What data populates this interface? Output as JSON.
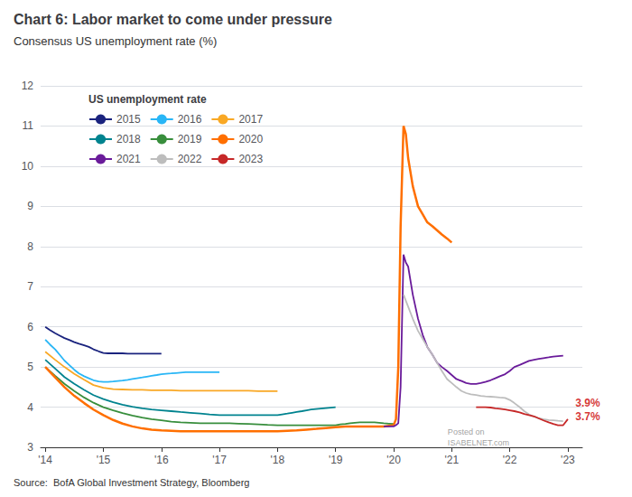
{
  "chart_data": {
    "type": "line",
    "title": "Chart 6: Labor market to come under pressure",
    "subtitle": "Consensus US unemployment rate (%)",
    "source": "Source:  BofA Global Investment Strategy, Bloomberg",
    "legend_title": "US unemployment rate",
    "legend": "upper left",
    "grid": true,
    "xlim": [
      2013.92,
      2023.25
    ],
    "xticks": [
      {
        "value": 2014,
        "label": "'14"
      },
      {
        "value": 2015,
        "label": "'15"
      },
      {
        "value": 2016,
        "label": "'16"
      },
      {
        "value": 2017,
        "label": "'17"
      },
      {
        "value": 2018,
        "label": "'18"
      },
      {
        "value": 2019,
        "label": "'19"
      },
      {
        "value": 2020,
        "label": "'20"
      },
      {
        "value": 2021,
        "label": "'21"
      },
      {
        "value": 2022,
        "label": "'22"
      },
      {
        "value": 2023,
        "label": "'23"
      }
    ],
    "ylim": [
      3,
      12
    ],
    "yticks": [
      3,
      4,
      5,
      6,
      7,
      8,
      9,
      10,
      11,
      12
    ],
    "annotations": [
      {
        "text": "3.9%",
        "x": 2023.1,
        "y": 3.95,
        "color": "#cc0000"
      },
      {
        "text": "3.7%",
        "x": 2023.1,
        "y": 3.62,
        "color": "#cc0000"
      },
      {
        "text": "Posted on",
        "x": 2020.9,
        "y": 3.08
      },
      {
        "text": "ISABELNET.com",
        "x": 2020.9,
        "y": 3.02
      }
    ],
    "series": [
      {
        "name": "2015",
        "color": "#1a237e",
        "x": [
          2014.0,
          2014.08,
          2014.17,
          2014.25,
          2014.33,
          2014.42,
          2014.5,
          2014.58,
          2014.67,
          2014.75,
          2014.83,
          2014.92,
          2015.0,
          2015.08,
          2015.17,
          2015.25,
          2015.33,
          2015.42,
          2015.5,
          2015.58,
          2015.67,
          2015.75,
          2015.83,
          2015.92,
          2016.0
        ],
        "values": [
          6.0,
          5.92,
          5.84,
          5.78,
          5.72,
          5.67,
          5.62,
          5.58,
          5.54,
          5.5,
          5.44,
          5.39,
          5.35,
          5.34,
          5.34,
          5.34,
          5.34,
          5.33,
          5.33,
          5.33,
          5.33,
          5.33,
          5.33,
          5.33,
          5.33
        ]
      },
      {
        "name": "2016",
        "color": "#29b6f6",
        "x": [
          2014.0,
          2014.08,
          2014.17,
          2014.25,
          2014.33,
          2014.42,
          2014.5,
          2014.58,
          2014.67,
          2014.75,
          2014.83,
          2014.92,
          2015.0,
          2015.08,
          2015.17,
          2015.25,
          2015.33,
          2015.42,
          2015.5,
          2015.58,
          2015.67,
          2015.75,
          2015.83,
          2015.92,
          2016.0,
          2016.08,
          2016.17,
          2016.25,
          2016.33,
          2016.42,
          2016.5,
          2016.58,
          2016.67,
          2016.75,
          2016.83,
          2016.92,
          2017.0
        ],
        "values": [
          5.68,
          5.56,
          5.44,
          5.3,
          5.16,
          5.04,
          4.93,
          4.84,
          4.77,
          4.72,
          4.67,
          4.64,
          4.63,
          4.63,
          4.64,
          4.65,
          4.66,
          4.68,
          4.7,
          4.72,
          4.74,
          4.76,
          4.78,
          4.8,
          4.82,
          4.83,
          4.84,
          4.85,
          4.86,
          4.87,
          4.87,
          4.87,
          4.87,
          4.87,
          4.87,
          4.87,
          4.87
        ]
      },
      {
        "name": "2017",
        "color": "#f9a825",
        "x": [
          2014.0,
          2014.17,
          2014.33,
          2014.5,
          2014.67,
          2014.83,
          2015.0,
          2015.17,
          2015.33,
          2015.5,
          2015.67,
          2015.83,
          2016.0,
          2016.17,
          2016.33,
          2016.5,
          2016.67,
          2016.83,
          2017.0,
          2017.17,
          2017.33,
          2017.5,
          2017.67,
          2017.83,
          2018.0
        ],
        "values": [
          5.38,
          5.18,
          5.0,
          4.83,
          4.68,
          4.55,
          4.48,
          4.45,
          4.44,
          4.43,
          4.43,
          4.42,
          4.42,
          4.42,
          4.41,
          4.41,
          4.41,
          4.41,
          4.41,
          4.41,
          4.41,
          4.41,
          4.4,
          4.4,
          4.4
        ]
      },
      {
        "name": "2018",
        "color": "#00838f",
        "x": [
          2014.0,
          2014.17,
          2014.33,
          2014.5,
          2014.67,
          2014.83,
          2015.0,
          2015.17,
          2015.33,
          2015.5,
          2015.67,
          2015.83,
          2016.0,
          2016.17,
          2016.33,
          2016.5,
          2016.67,
          2016.83,
          2017.0,
          2017.17,
          2017.33,
          2017.5,
          2017.67,
          2017.83,
          2018.0,
          2018.08,
          2018.17,
          2018.25,
          2018.33,
          2018.42,
          2018.5,
          2018.58,
          2019.0
        ],
        "values": [
          5.18,
          4.96,
          4.75,
          4.58,
          4.43,
          4.3,
          4.2,
          4.12,
          4.06,
          4.01,
          3.97,
          3.94,
          3.92,
          3.9,
          3.88,
          3.86,
          3.84,
          3.82,
          3.8,
          3.8,
          3.8,
          3.8,
          3.8,
          3.8,
          3.8,
          3.82,
          3.84,
          3.86,
          3.88,
          3.9,
          3.92,
          3.94,
          4.0
        ]
      },
      {
        "name": "2019",
        "color": "#388e3c",
        "x": [
          2014.0,
          2014.17,
          2014.33,
          2014.5,
          2014.67,
          2014.83,
          2015.0,
          2015.17,
          2015.33,
          2015.5,
          2015.67,
          2015.83,
          2016.0,
          2016.17,
          2016.33,
          2016.5,
          2016.67,
          2016.83,
          2017.0,
          2017.17,
          2017.33,
          2017.5,
          2017.67,
          2017.83,
          2018.0,
          2018.17,
          2018.33,
          2018.5,
          2018.67,
          2018.83,
          2019.0,
          2019.08,
          2019.17,
          2019.25,
          2019.33,
          2019.42,
          2019.5,
          2019.58,
          2019.67,
          2019.75,
          2019.83,
          2019.92,
          2020.0
        ],
        "values": [
          5.0,
          4.78,
          4.58,
          4.4,
          4.24,
          4.11,
          4.0,
          3.92,
          3.85,
          3.79,
          3.74,
          3.7,
          3.67,
          3.64,
          3.62,
          3.61,
          3.6,
          3.6,
          3.6,
          3.6,
          3.59,
          3.58,
          3.57,
          3.56,
          3.55,
          3.55,
          3.55,
          3.55,
          3.55,
          3.55,
          3.55,
          3.57,
          3.58,
          3.6,
          3.61,
          3.62,
          3.62,
          3.62,
          3.62,
          3.61,
          3.6,
          3.59,
          3.58
        ]
      },
      {
        "name": "2020",
        "color": "#ff6f00",
        "x": [
          2014.0,
          2014.17,
          2014.33,
          2014.5,
          2014.67,
          2014.83,
          2015.0,
          2015.17,
          2015.33,
          2015.5,
          2015.67,
          2015.83,
          2016.0,
          2016.17,
          2016.33,
          2016.5,
          2016.67,
          2016.83,
          2017.0,
          2017.17,
          2017.33,
          2017.5,
          2017.67,
          2017.83,
          2018.0,
          2018.17,
          2018.33,
          2018.5,
          2018.67,
          2018.83,
          2019.0,
          2019.17,
          2019.33,
          2019.5,
          2019.67,
          2019.83,
          2020.0,
          2020.04,
          2020.08,
          2020.12,
          2020.17,
          2020.21,
          2020.25,
          2020.33,
          2020.42,
          2020.5,
          2020.58,
          2020.67,
          2020.75,
          2020.83,
          2020.92,
          2021.0
        ],
        "values": [
          5.0,
          4.74,
          4.5,
          4.28,
          4.1,
          3.94,
          3.8,
          3.68,
          3.59,
          3.52,
          3.47,
          3.44,
          3.42,
          3.41,
          3.4,
          3.4,
          3.4,
          3.4,
          3.4,
          3.4,
          3.4,
          3.4,
          3.4,
          3.4,
          3.4,
          3.41,
          3.42,
          3.44,
          3.46,
          3.48,
          3.5,
          3.52,
          3.52,
          3.52,
          3.52,
          3.52,
          3.55,
          3.7,
          5.0,
          8.5,
          11.0,
          10.8,
          10.2,
          9.5,
          9.0,
          8.8,
          8.6,
          8.5,
          8.4,
          8.3,
          8.2,
          8.1
        ]
      },
      {
        "name": "2021",
        "color": "#6a1b9a",
        "x": [
          2019.83,
          2019.92,
          2020.0,
          2020.04,
          2020.08,
          2020.12,
          2020.17,
          2020.21,
          2020.25,
          2020.33,
          2020.42,
          2020.5,
          2020.58,
          2020.67,
          2020.75,
          2020.83,
          2020.92,
          2021.0,
          2021.08,
          2021.17,
          2021.25,
          2021.33,
          2021.42,
          2021.5,
          2021.58,
          2021.67,
          2021.75,
          2021.83,
          2021.92,
          2022.0,
          2022.08,
          2022.17,
          2022.25,
          2022.33,
          2022.42,
          2022.5,
          2022.58,
          2022.67,
          2022.75,
          2022.83,
          2022.92
        ],
        "values": [
          3.52,
          3.52,
          3.52,
          3.55,
          3.6,
          4.5,
          7.8,
          7.6,
          7.5,
          6.8,
          6.2,
          5.8,
          5.5,
          5.3,
          5.1,
          5.0,
          4.9,
          4.8,
          4.7,
          4.65,
          4.6,
          4.58,
          4.58,
          4.6,
          4.63,
          4.67,
          4.72,
          4.77,
          4.82,
          4.9,
          5.0,
          5.05,
          5.1,
          5.15,
          5.18,
          5.2,
          5.22,
          5.24,
          5.26,
          5.27,
          5.28
        ]
      },
      {
        "name": "2022",
        "color": "#bdbdbd",
        "x": [
          2020.17,
          2020.25,
          2020.33,
          2020.42,
          2020.5,
          2020.58,
          2020.67,
          2020.75,
          2020.83,
          2020.92,
          2021.0,
          2021.08,
          2021.17,
          2021.25,
          2021.33,
          2021.42,
          2021.5,
          2021.58,
          2021.67,
          2021.75,
          2021.83,
          2021.92,
          2022.0,
          2022.08,
          2022.17,
          2022.25,
          2022.33,
          2022.42,
          2022.5,
          2022.58,
          2022.67,
          2022.75,
          2022.83,
          2022.92
        ],
        "values": [
          6.8,
          6.5,
          6.2,
          5.9,
          5.7,
          5.5,
          5.3,
          5.1,
          4.9,
          4.7,
          4.6,
          4.5,
          4.4,
          4.35,
          4.32,
          4.3,
          4.28,
          4.27,
          4.26,
          4.25,
          4.24,
          4.23,
          4.18,
          4.1,
          4.0,
          3.9,
          3.82,
          3.76,
          3.72,
          3.7,
          3.68,
          3.67,
          3.66,
          3.65
        ]
      },
      {
        "name": "2023",
        "color": "#c62828",
        "x": [
          2021.42,
          2021.5,
          2021.58,
          2021.67,
          2021.75,
          2021.83,
          2021.92,
          2022.0,
          2022.08,
          2022.17,
          2022.25,
          2022.33,
          2022.42,
          2022.5,
          2022.58,
          2022.67,
          2022.75,
          2022.83,
          2022.92,
          2023.0
        ],
        "values": [
          4.0,
          4.0,
          4.0,
          3.99,
          3.97,
          3.96,
          3.94,
          3.92,
          3.9,
          3.87,
          3.83,
          3.8,
          3.77,
          3.72,
          3.67,
          3.62,
          3.58,
          3.55,
          3.55,
          3.7
        ]
      }
    ]
  }
}
